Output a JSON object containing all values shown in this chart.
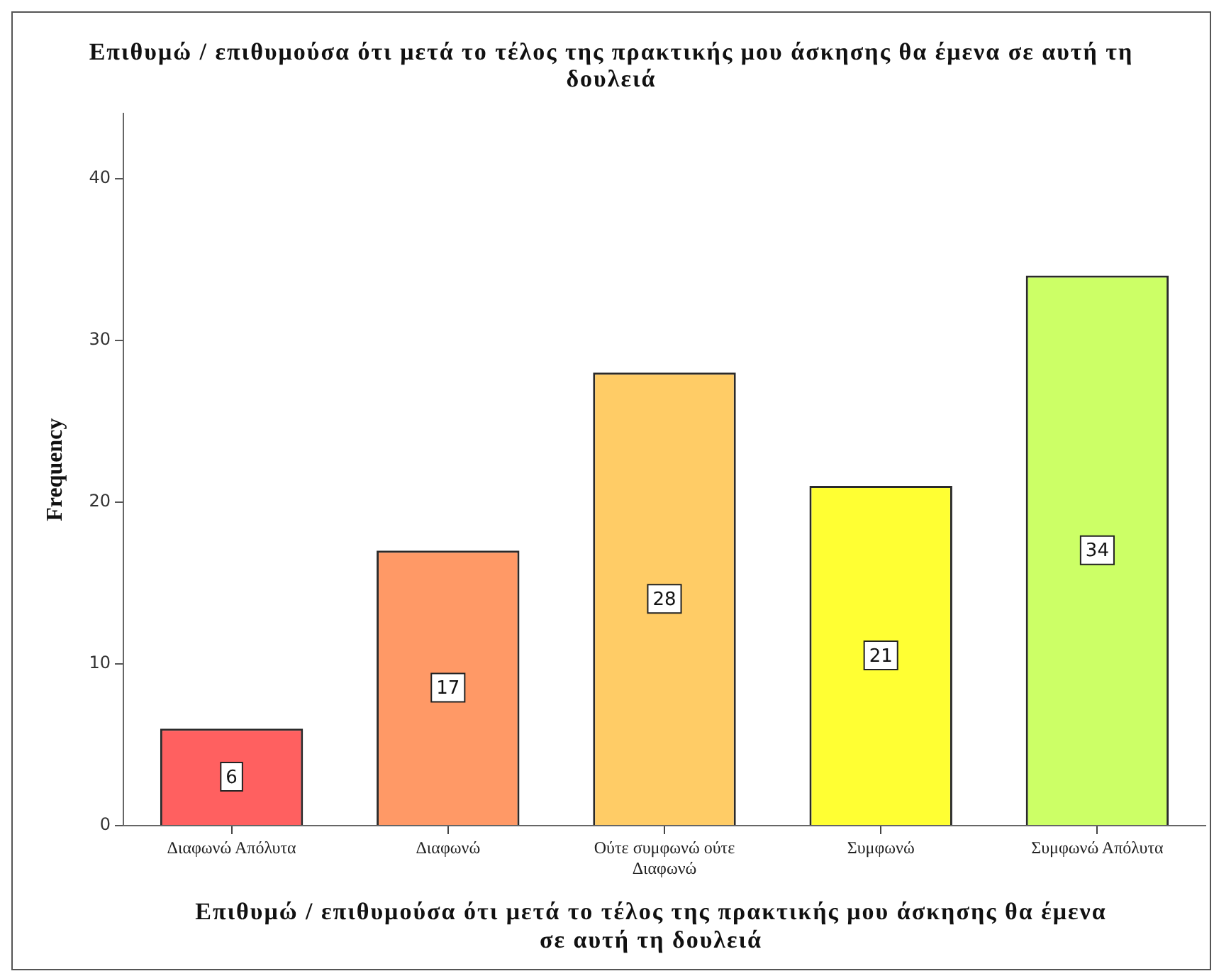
{
  "chart_data": {
    "type": "bar",
    "title": "Επιθυμώ / επιθυμούσα ότι μετά το τέλος της πρακτικής μου άσκησης θα έμενα σε αυτή τη δουλειά",
    "xlabel": "Επιθυμώ / επιθυμούσα ότι μετά το τέλος της πρακτικής μου άσκησης θα έμενα σε αυτή τη δουλειά",
    "ylabel": "Frequency",
    "categories": [
      "Διαφωνώ Απόλυτα",
      "Διαφωνώ",
      "Ούτε συμφωνώ ούτε Διαφωνώ",
      "Συμφωνώ",
      "Συμφωνώ Απόλυτα"
    ],
    "values": [
      6,
      17,
      28,
      21,
      34
    ],
    "colors": [
      "#ff6060",
      "#ff9966",
      "#ffcc66",
      "#ffff33",
      "#ccff66"
    ],
    "ylim": [
      0,
      44
    ],
    "yticks": [
      0,
      10,
      20,
      30,
      40
    ],
    "data_labels": true,
    "legend": false,
    "grid": false
  }
}
